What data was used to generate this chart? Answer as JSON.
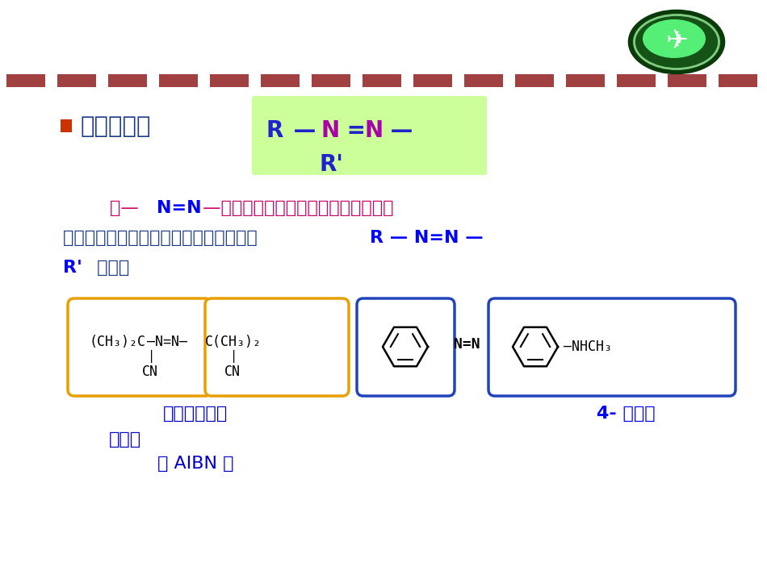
{
  "bg_color": "#ffffff",
  "dashed_line_color": "#a04040",
  "title_bullet_color": "#cc3300",
  "title_text_color": "#1a3a8a",
  "title_text": "偶氮化合物",
  "green_box_bg": "#ccff99",
  "formula_R_color": "#2222cc",
  "formula_N_color": "#aa00aa",
  "body_pink": "#cc0066",
  "body_blue_bold": "#0000ff",
  "body_dark_blue": "#1a3a8a",
  "label_blue": "#0000cc",
  "label_bold_blue": "#0000ff",
  "orange_box_color": "#e8a000",
  "blue_box_color": "#2244bb",
  "airplane_outer": "#1a6b1a",
  "airplane_inner": "#33cc55",
  "label1": "偶氮二异丁腈",
  "label2": "偶氮苯",
  "label3": "（ AIBN ）",
  "label4": "4- 甲氨基"
}
